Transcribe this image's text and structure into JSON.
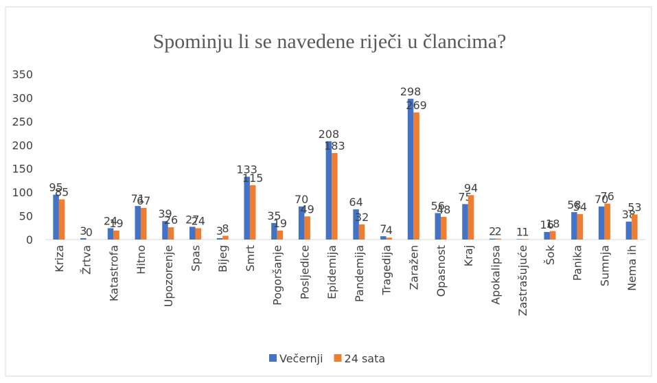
{
  "chart_data": {
    "type": "bar",
    "title": "Spominju li se navedene riječi u člancima?",
    "categories": [
      "Kriza",
      "Žrtva",
      "Katastrofa",
      "Hitno",
      "Upozorenje",
      "Spas",
      "Bijeg",
      "Smrt",
      "Pogoršanje",
      "Posljedice",
      "Epidemija",
      "Pandemija",
      "Tragedija",
      "Zaražen",
      "Opasnost",
      "Kraj",
      "Apokalipsa",
      "Zastrašujuće",
      "Šok",
      "Panika",
      "Sumnja",
      "Nema ih"
    ],
    "series": [
      {
        "name": "Večernji",
        "color": "#4472c4",
        "values": [
          95,
          3,
          24,
          71,
          39,
          27,
          3,
          133,
          35,
          70,
          208,
          64,
          7,
          298,
          56,
          75,
          2,
          1,
          16,
          58,
          70,
          38
        ]
      },
      {
        "name": "24 sata",
        "color": "#ed7d31",
        "values": [
          85,
          0,
          19,
          67,
          26,
          24,
          8,
          115,
          19,
          49,
          183,
          32,
          4,
          269,
          48,
          94,
          2,
          1,
          18,
          54,
          76,
          53
        ]
      }
    ],
    "ylim": [
      0,
      350
    ],
    "yticks": [
      0,
      50,
      100,
      150,
      200,
      250,
      300,
      350
    ],
    "legend": "bottom"
  }
}
